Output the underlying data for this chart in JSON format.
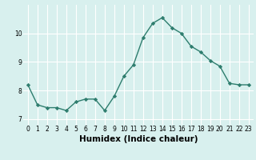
{
  "xlabel": "Humidex (Indice chaleur)",
  "x_values": [
    0,
    1,
    2,
    3,
    4,
    5,
    6,
    7,
    8,
    9,
    10,
    11,
    12,
    13,
    14,
    15,
    16,
    17,
    18,
    19,
    20,
    21,
    22,
    23
  ],
  "y_values": [
    8.2,
    7.5,
    7.4,
    7.4,
    7.3,
    7.6,
    7.7,
    7.7,
    7.3,
    7.8,
    8.5,
    8.9,
    9.85,
    10.35,
    10.55,
    10.2,
    10.0,
    9.55,
    9.35,
    9.05,
    8.85,
    8.25,
    8.2,
    8.2
  ],
  "ylim": [
    6.8,
    11.0
  ],
  "yticks": [
    7,
    8,
    9,
    10
  ],
  "xticks": [
    0,
    1,
    2,
    3,
    4,
    5,
    6,
    7,
    8,
    9,
    10,
    11,
    12,
    13,
    14,
    15,
    16,
    17,
    18,
    19,
    20,
    21,
    22,
    23
  ],
  "line_color": "#2e7d6e",
  "marker": "D",
  "marker_size": 2.2,
  "line_width": 1.0,
  "bg_color": "#d8f0ee",
  "grid_color": "#ffffff",
  "tick_label_fontsize": 5.5,
  "xlabel_fontsize": 7.5,
  "ylabel_fontsize": 7.5
}
